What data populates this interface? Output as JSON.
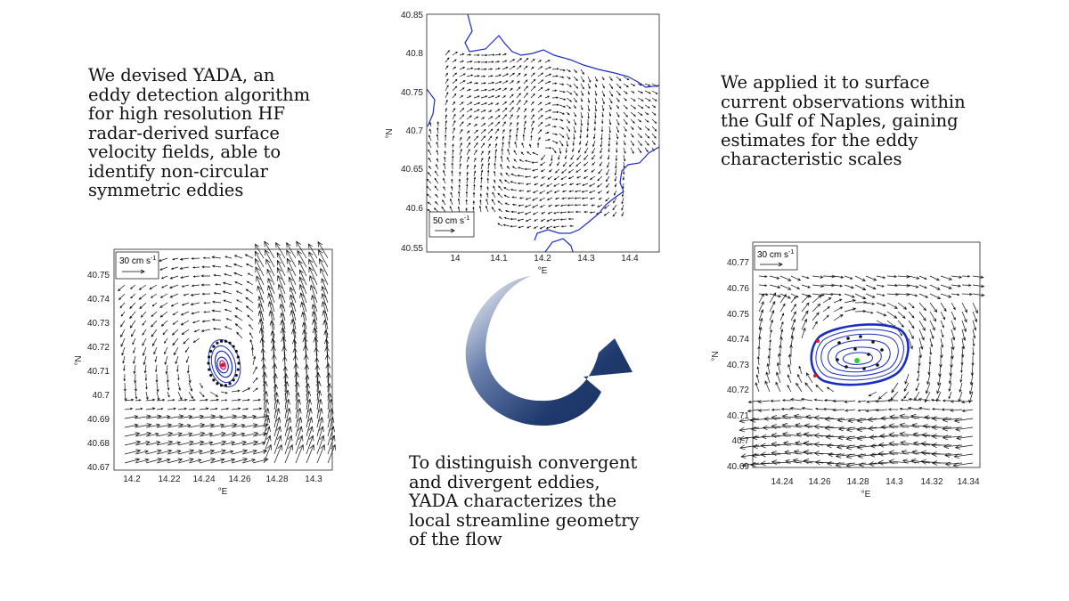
{
  "texts": {
    "left": [
      "We devised YADA, an",
      "eddy detection algorithm",
      "for high resolution HF",
      "radar-derived surface",
      "velocity fields, able to",
      "identify non-circular",
      "symmetric eddies"
    ],
    "right": [
      "We applied it to surface",
      "current observations within",
      "the Gulf of Naples, gaining",
      "estimates for the eddy",
      "characteristic scales"
    ],
    "bottom": [
      "To distinguish convergent",
      "and divergent eddies,",
      "YADA characterizes  the",
      "local streamline geometry",
      "of the flow"
    ]
  },
  "colors": {
    "coast": "#1a2dbf",
    "streamline": "#1a2dbf",
    "arrow_dark": "#1f3a6e",
    "arrow_light": "#ffffff"
  },
  "plots": {
    "top": {
      "xlabel": "°E",
      "ylabel": "°N",
      "xticks": [
        "14",
        "14.1",
        "14.2",
        "14.3",
        "14.4"
      ],
      "yticks": [
        "40.85",
        "40.8",
        "40.75",
        "40.7",
        "40.65",
        "40.6",
        "40.55"
      ],
      "scale_label": "50 cm s",
      "scale_sup": "-1"
    },
    "left": {
      "xlabel": "°E",
      "ylabel": "°N",
      "xticks": [
        "14.2",
        "14.22",
        "14.24",
        "14.26",
        "14.28",
        "14.3"
      ],
      "yticks": [
        "40.75",
        "40.74",
        "40.73",
        "40.72",
        "40.71",
        "40.7",
        "40.69",
        "40.68",
        "40.67"
      ],
      "scale_label": "30 cm s",
      "scale_sup": "-1"
    },
    "right": {
      "xlabel": "°E",
      "ylabel": "°N",
      "xticks": [
        "14.24",
        "14.26",
        "14.28",
        "14.3",
        "14.32",
        "14.34"
      ],
      "yticks": [
        "40.77",
        "40.76",
        "40.75",
        "40.74",
        "40.73",
        "40.72",
        "40.71",
        "40.7",
        "40.69"
      ],
      "scale_label": "30 cm s",
      "scale_sup": "-1"
    }
  },
  "icons": {
    "cycle": "curved-cycle-arrow-icon"
  }
}
